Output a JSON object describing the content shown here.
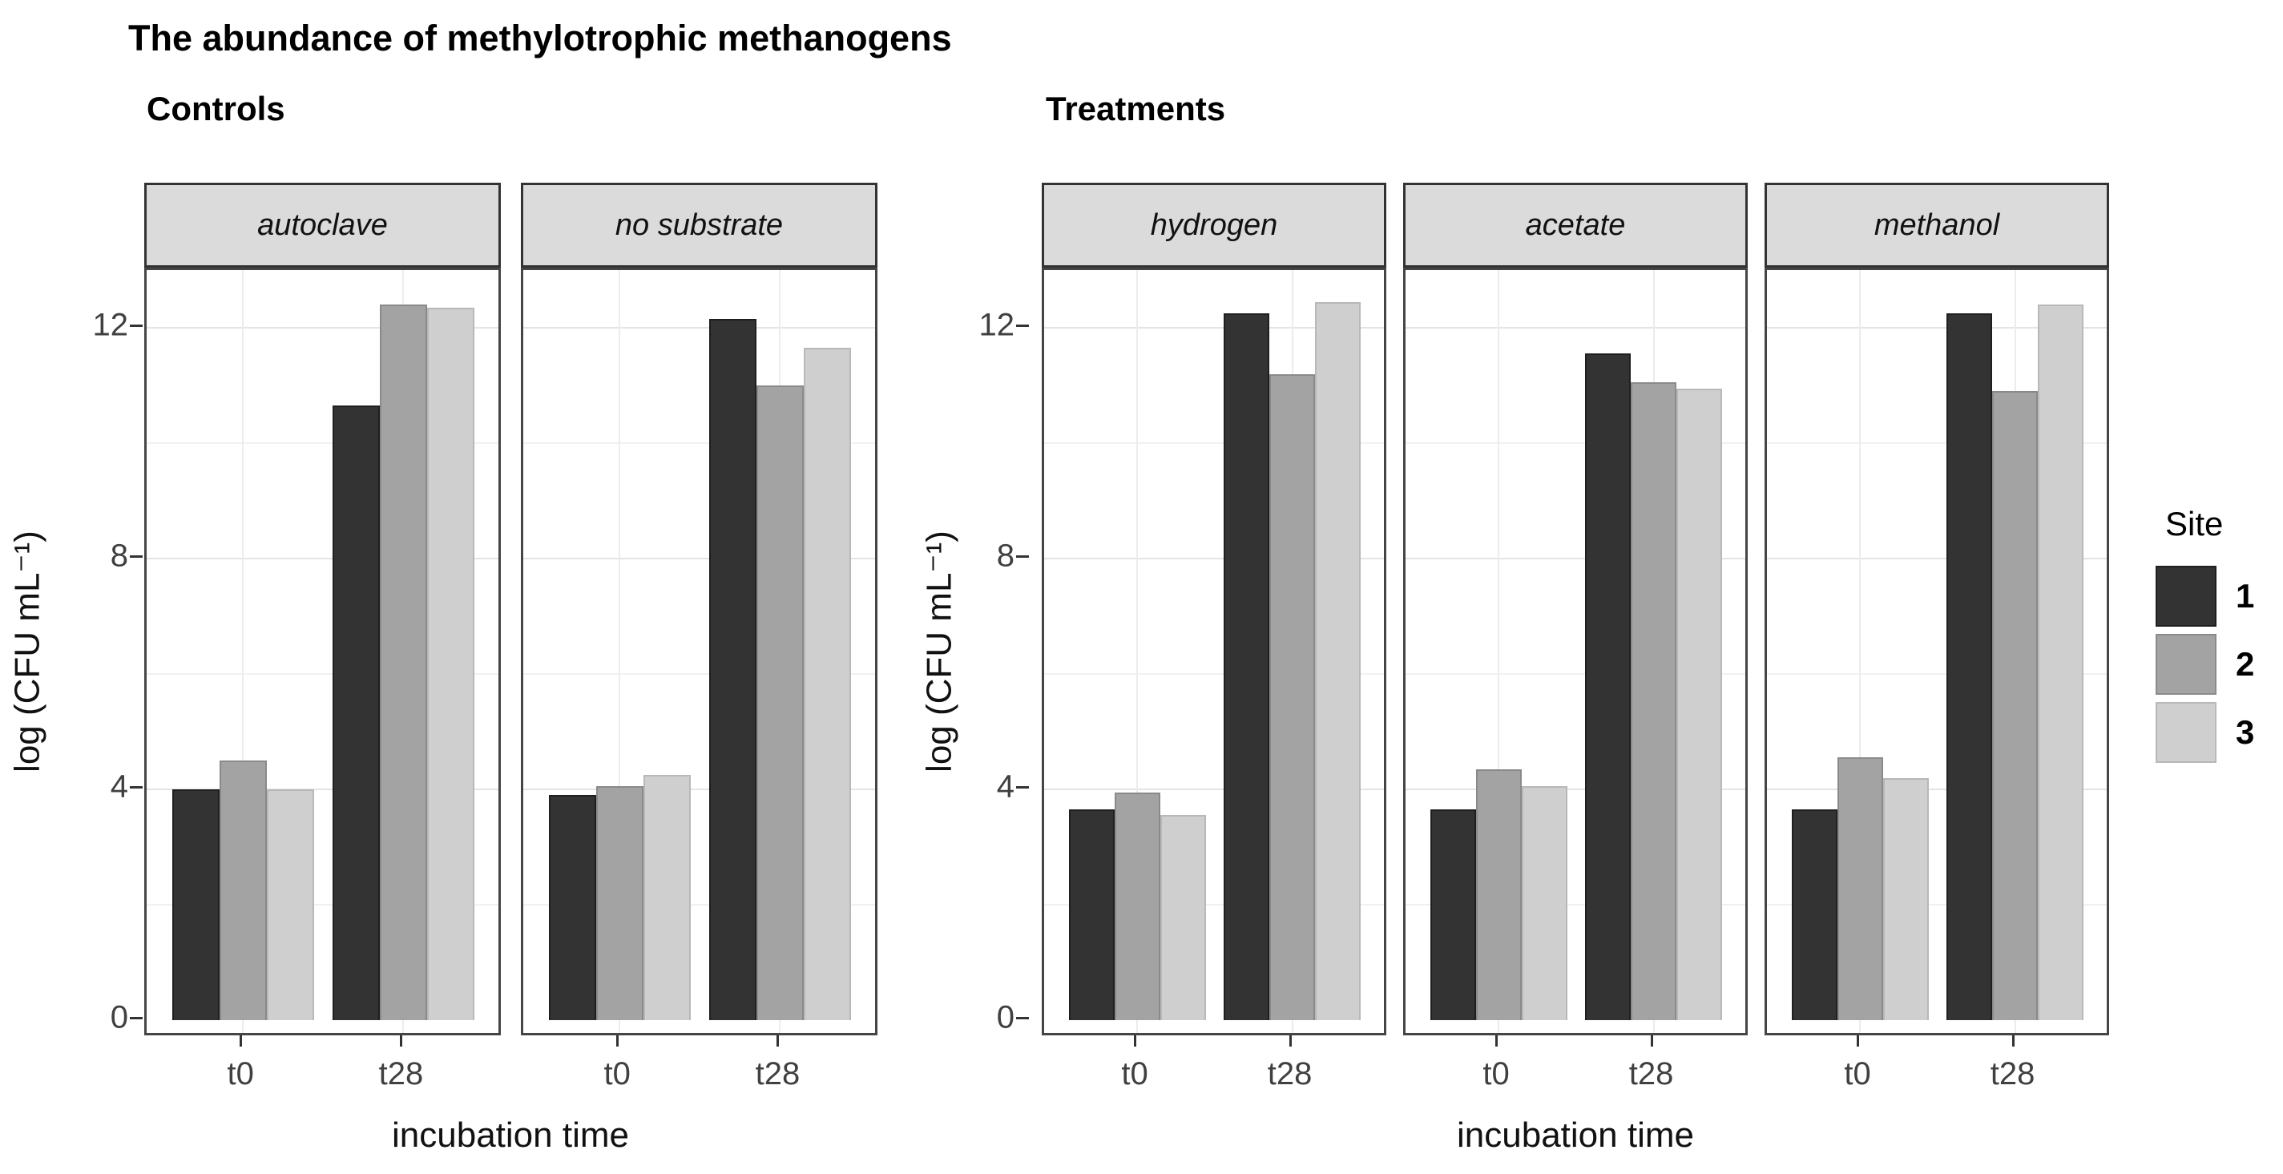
{
  "title": "The abundance of methylotrophic methanogens",
  "chart_data": {
    "type": "bar",
    "title": "The abundance of methylotrophic methanogens",
    "ylabel": "log (CFU mL⁻¹)",
    "xlabel": "incubation time",
    "categories": [
      "t0",
      "t28"
    ],
    "yticks": [
      0,
      4,
      8,
      12
    ],
    "minor_gridlines": [
      2,
      6,
      10
    ],
    "ylim": [
      0,
      13
    ],
    "grid": "major and minor horizontal, vertical at category positions",
    "legend": {
      "title": "Site",
      "position": "right",
      "entries": [
        {
          "label": "1",
          "color": "#333333",
          "stroke": "#1f1f1f"
        },
        {
          "label": "2",
          "color": "#a3a3a3",
          "stroke": "#8a8a8a"
        },
        {
          "label": "3",
          "color": "#cfcfcf",
          "stroke": "#b8b8b8"
        }
      ]
    },
    "groups": [
      {
        "subtitle": "Controls",
        "facets": [
          {
            "label": "autoclave",
            "series": [
              {
                "site": "1",
                "values": [
                  4.0,
                  10.65
                ]
              },
              {
                "site": "2",
                "values": [
                  4.5,
                  12.4
                ]
              },
              {
                "site": "3",
                "values": [
                  4.0,
                  12.35
                ]
              }
            ]
          },
          {
            "label": "no substrate",
            "series": [
              {
                "site": "1",
                "values": [
                  3.9,
                  12.15
                ]
              },
              {
                "site": "2",
                "values": [
                  4.05,
                  11.0
                ]
              },
              {
                "site": "3",
                "values": [
                  4.25,
                  11.65
                ]
              }
            ]
          }
        ]
      },
      {
        "subtitle": "Treatments",
        "facets": [
          {
            "label": "hydrogen",
            "series": [
              {
                "site": "1",
                "values": [
                  3.65,
                  12.25
                ]
              },
              {
                "site": "2",
                "values": [
                  3.95,
                  11.2
                ]
              },
              {
                "site": "3",
                "values": [
                  3.55,
                  12.45
                ]
              }
            ]
          },
          {
            "label": "acetate",
            "series": [
              {
                "site": "1",
                "values": [
                  3.65,
                  11.55
                ]
              },
              {
                "site": "2",
                "values": [
                  4.35,
                  11.05
                ]
              },
              {
                "site": "3",
                "values": [
                  4.05,
                  10.95
                ]
              }
            ]
          },
          {
            "label": "methanol",
            "series": [
              {
                "site": "1",
                "values": [
                  3.65,
                  12.25
                ]
              },
              {
                "site": "2",
                "values": [
                  4.55,
                  10.9
                ]
              },
              {
                "site": "3",
                "values": [
                  4.2,
                  12.4
                ]
              }
            ]
          }
        ]
      }
    ]
  }
}
